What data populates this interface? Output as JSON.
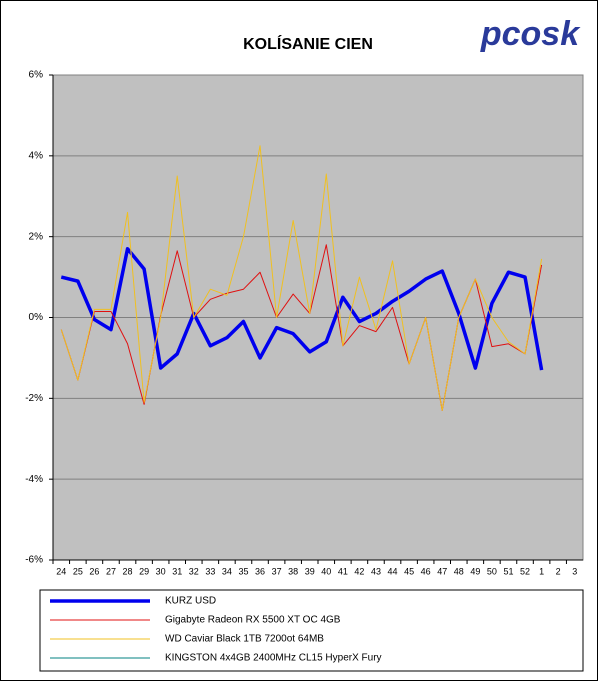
{
  "logo": "pcosk",
  "chart_data": {
    "type": "line",
    "title": "KOLÍSANIE CIEN",
    "categories": [
      "24",
      "25",
      "26",
      "27",
      "28",
      "29",
      "30",
      "31",
      "32",
      "33",
      "34",
      "35",
      "36",
      "37",
      "38",
      "39",
      "40",
      "41",
      "42",
      "43",
      "44",
      "45",
      "46",
      "47",
      "48",
      "49",
      "50",
      "51",
      "52",
      "1",
      "2",
      "3"
    ],
    "ylim": [
      -6,
      6
    ],
    "yticks": [
      {
        "value": -6,
        "label": "-6%"
      },
      {
        "value": -4,
        "label": "-4%"
      },
      {
        "value": -2,
        "label": "-2%"
      },
      {
        "value": 0,
        "label": "0%"
      },
      {
        "value": 2,
        "label": "2%"
      },
      {
        "value": 4,
        "label": "4%"
      },
      {
        "value": 6,
        "label": "6%"
      }
    ],
    "grid": true,
    "series": [
      {
        "name": "KURZ USD",
        "color": "#0000ee",
        "values": [
          1.0,
          0.9,
          -0.05,
          -0.3,
          1.7,
          1.2,
          -1.25,
          -0.9,
          0.1,
          -0.7,
          -0.5,
          -0.1,
          -1.0,
          -0.25,
          -0.4,
          -0.85,
          -0.6,
          0.5,
          -0.1,
          0.1,
          0.4,
          0.65,
          0.95,
          1.15,
          0.1,
          -1.25,
          0.35,
          1.12,
          1.0,
          -1.3,
          null,
          null
        ]
      },
      {
        "name": "Gigabyte Radeon RX 5500 XT OC 4GB",
        "color": "#e01010",
        "values": [
          -0.3,
          -1.55,
          0.15,
          0.15,
          -0.65,
          -2.15,
          0.05,
          1.65,
          0.0,
          0.45,
          0.6,
          0.7,
          1.12,
          0.0,
          0.58,
          0.1,
          1.8,
          -0.7,
          -0.2,
          -0.35,
          0.25,
          -1.15,
          0.0,
          -2.3,
          0.0,
          0.95,
          -0.72,
          -0.65,
          -0.9,
          1.3,
          null,
          null
        ]
      },
      {
        "name": "WD Caviar Black 1TB 7200ot 64MB",
        "color": "#f0c020",
        "values": [
          -0.3,
          -1.55,
          0.2,
          0.2,
          2.6,
          -2.1,
          0.0,
          3.5,
          0.0,
          0.7,
          0.55,
          2.0,
          4.25,
          0.0,
          2.4,
          0.1,
          3.55,
          -0.7,
          1.0,
          -0.3,
          1.4,
          -1.15,
          0.0,
          -2.3,
          0.0,
          0.95,
          0.0,
          -0.6,
          -0.9,
          1.45,
          null,
          null
        ]
      },
      {
        "name": "KINGSTON 4x4GB 2400MHz CL15 HyperX Fury",
        "color": "#008080",
        "values": [
          null,
          null,
          null,
          null,
          null,
          null,
          null,
          null,
          null,
          null,
          null,
          null,
          null,
          null,
          null,
          null,
          null,
          null,
          null,
          null,
          null,
          null,
          null,
          null,
          null,
          null,
          null,
          null,
          null,
          null,
          null,
          null
        ]
      }
    ]
  }
}
